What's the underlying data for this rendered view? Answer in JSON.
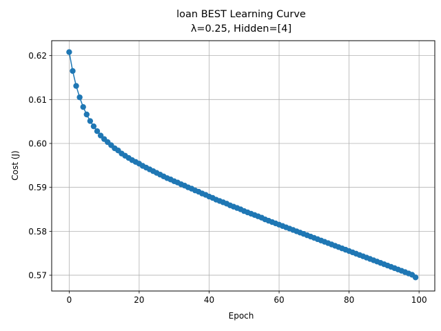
{
  "chart_data": {
    "type": "line",
    "title": "loan BEST Learning Curve",
    "subtitle": "λ=0.25, Hidden=[4]",
    "xlabel": "Epoch",
    "ylabel": "Cost (J)",
    "xlim": [
      -5,
      104.5
    ],
    "ylim": [
      0.5664,
      0.6234
    ],
    "xticks": [
      0,
      20,
      40,
      60,
      80,
      100
    ],
    "xtick_labels": [
      "0",
      "20",
      "40",
      "60",
      "80",
      "100"
    ],
    "yticks": [
      0.57,
      0.58,
      0.59,
      0.6,
      0.61,
      0.62
    ],
    "ytick_labels": [
      "0.57",
      "0.58",
      "0.59",
      "0.60",
      "0.61",
      "0.62"
    ],
    "grid": true,
    "marker": "circle",
    "color": "#1f77b4",
    "series": [
      {
        "x": [
          0,
          1,
          2,
          3,
          4,
          5,
          6,
          7,
          8,
          9,
          10,
          11,
          12,
          13,
          14,
          15,
          16,
          17,
          18,
          19,
          20,
          21,
          22,
          23,
          24,
          25,
          26,
          27,
          28,
          29,
          30,
          31,
          32,
          33,
          34,
          35,
          36,
          37,
          38,
          39,
          40,
          41,
          42,
          43,
          44,
          45,
          46,
          47,
          48,
          49,
          50,
          51,
          52,
          53,
          54,
          55,
          56,
          57,
          58,
          59,
          60,
          61,
          62,
          63,
          64,
          65,
          66,
          67,
          68,
          69,
          70,
          71,
          72,
          73,
          74,
          75,
          76,
          77,
          78,
          79,
          80,
          81,
          82,
          83,
          84,
          85,
          86,
          87,
          88,
          89,
          90,
          91,
          92,
          93,
          94,
          95,
          96,
          97,
          98,
          99
        ],
        "values": [
          0.6208,
          0.6165,
          0.6131,
          0.6105,
          0.6083,
          0.6066,
          0.6051,
          0.6039,
          0.6028,
          0.6018,
          0.601,
          0.6003,
          0.5996,
          0.5989,
          0.5984,
          0.5977,
          0.5972,
          0.5967,
          0.5962,
          0.5958,
          0.5954,
          0.5949,
          0.5945,
          0.5941,
          0.5937,
          0.5933,
          0.5929,
          0.5925,
          0.5921,
          0.5918,
          0.5914,
          0.5911,
          0.5907,
          0.5904,
          0.59,
          0.5897,
          0.5893,
          0.589,
          0.5886,
          0.5883,
          0.5879,
          0.5876,
          0.5872,
          0.5869,
          0.5866,
          0.5863,
          0.5859,
          0.5856,
          0.5853,
          0.585,
          0.5846,
          0.5843,
          0.584,
          0.5837,
          0.5834,
          0.5831,
          0.5827,
          0.5824,
          0.5821,
          0.5818,
          0.5815,
          0.5812,
          0.5809,
          0.5806,
          0.5803,
          0.58,
          0.5797,
          0.5794,
          0.5791,
          0.5788,
          0.5785,
          0.5782,
          0.5779,
          0.5776,
          0.5773,
          0.577,
          0.5767,
          0.5764,
          0.5761,
          0.5758,
          0.5755,
          0.5752,
          0.5749,
          0.5746,
          0.5743,
          0.574,
          0.5737,
          0.5734,
          0.5731,
          0.5728,
          0.5725,
          0.5722,
          0.5719,
          0.5716,
          0.5713,
          0.571,
          0.5707,
          0.5704,
          0.5701,
          0.5695
        ]
      }
    ]
  }
}
